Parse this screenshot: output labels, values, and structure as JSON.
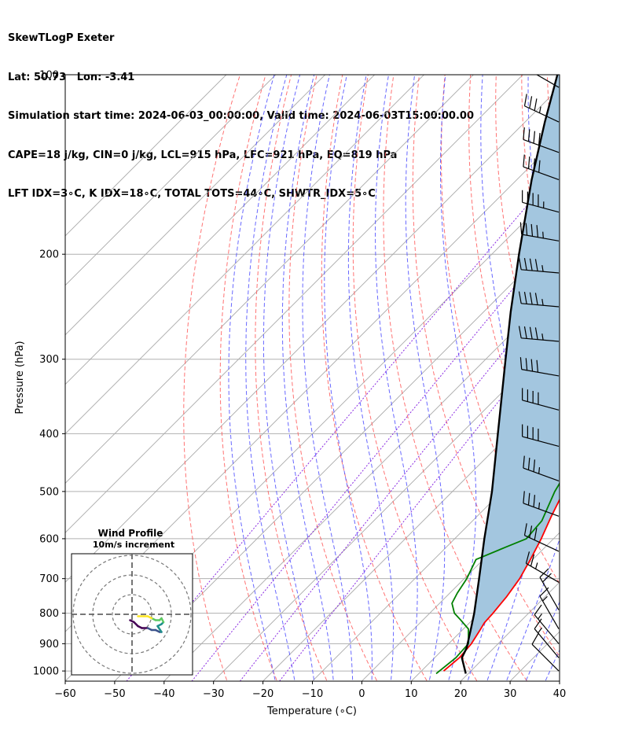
{
  "header": {
    "line1": "SkewTLogP Exeter",
    "line2": "Lat: 50.73   Lon: -3.41",
    "line3": "Simulation start time: 2024-06-03_00:00:00, Valid time: 2024-06-03T15:00:00.00",
    "line4": "CAPE=18 j/kg, CIN=0 j/kg, LCL=915 hPa, LFC=921 hPa, EQ=819 hPa",
    "line5": "LFT IDX=3∘C, K IDX=18∘C, TOTAL TOTS=44∘C, SHWTR_IDX=5∘C"
  },
  "chart_data": {
    "type": "skewt",
    "xlabel": "Temperature (∘C)",
    "ylabel": "Pressure (hPa)",
    "xlim": [
      -60,
      40
    ],
    "ylim": [
      1040,
      100
    ],
    "xticks": [
      -60,
      -50,
      -40,
      -30,
      -20,
      -10,
      0,
      10,
      20,
      30,
      40
    ],
    "xtick_labels": [
      "−60",
      "−50",
      "−40",
      "−30",
      "−20",
      "−10",
      "0",
      "10",
      "20",
      "30",
      "40"
    ],
    "yticks": [
      1000,
      900,
      800,
      700,
      600,
      500,
      400,
      300,
      200,
      100
    ],
    "ytick_labels": [
      "1000",
      "900",
      "800",
      "700",
      "600",
      "500",
      "400",
      "300",
      "200",
      "100"
    ],
    "grid": true,
    "colors": {
      "temperature": "#ff0000",
      "dewpoint": "#008000",
      "parcel": "#000000",
      "cape_fill": "#a3c6df",
      "dry_adiabat": "#ff5a5a",
      "moist_adiabat": "#4d4dff",
      "mixing_ratio": "#8a2be2",
      "isotherm": "#a9a9a9"
    },
    "temperature": [
      [
        1000,
        14.5
      ],
      [
        950,
        15.0
      ],
      [
        900,
        14.6
      ],
      [
        850,
        13.5
      ],
      [
        830,
        13.0
      ],
      [
        800,
        12.8
      ],
      [
        750,
        12.2
      ],
      [
        700,
        11.2
      ],
      [
        650,
        9.5
      ],
      [
        600,
        7.5
      ],
      [
        550,
        5.0
      ],
      [
        500,
        2.5
      ],
      [
        450,
        0.8
      ],
      [
        400,
        -2.0
      ],
      [
        350,
        -6.5
      ],
      [
        330,
        -9.0
      ],
      [
        300,
        -12.5
      ],
      [
        270,
        -17.0
      ],
      [
        250,
        -21.5
      ],
      [
        230,
        -23.5
      ],
      [
        210,
        -25.5
      ],
      [
        200,
        -26.5
      ],
      [
        190,
        -26.5
      ],
      [
        180,
        -27.0
      ],
      [
        170,
        -28.0
      ],
      [
        160,
        -28.0
      ],
      [
        150,
        -29.5
      ],
      [
        140,
        -32.0
      ],
      [
        130,
        -36.5
      ],
      [
        125,
        -38.0
      ],
      [
        120,
        -39.5
      ],
      [
        115,
        -41.0
      ],
      [
        110,
        -42.5
      ],
      [
        105,
        -44.0
      ],
      [
        100,
        -45.2
      ]
    ],
    "dewpoint": [
      [
        1010,
        13.5
      ],
      [
        950,
        14.3
      ],
      [
        900,
        14.0
      ],
      [
        850,
        11.0
      ],
      [
        820,
        7.5
      ],
      [
        800,
        5.0
      ],
      [
        770,
        2.5
      ],
      [
        740,
        1.5
      ],
      [
        700,
        0.5
      ],
      [
        650,
        -1.5
      ],
      [
        620,
        2.0
      ],
      [
        600,
        4.5
      ],
      [
        560,
        4.0
      ],
      [
        500,
        0.7
      ],
      [
        450,
        -1.5
      ],
      [
        400,
        -5.0
      ],
      [
        350,
        -9.5
      ],
      [
        330,
        -17.0
      ],
      [
        310,
        -22.0
      ],
      [
        300,
        -25.0
      ],
      [
        280,
        -25.5
      ],
      [
        260,
        -26.5
      ],
      [
        240,
        -30.0
      ],
      [
        225,
        -31.5
      ],
      [
        210,
        -33.0
      ],
      [
        200,
        -34.5
      ],
      [
        190,
        -35.5
      ],
      [
        180,
        -36.5
      ],
      [
        170,
        -38.0
      ],
      [
        160,
        -42.0
      ],
      [
        150,
        -46.0
      ],
      [
        140,
        -50.5
      ],
      [
        130,
        -52.0
      ],
      [
        120,
        -52.5
      ],
      [
        110,
        -52.5
      ],
      [
        100,
        -53.5
      ]
    ],
    "parcel": [
      [
        1010,
        19.5
      ],
      [
        950,
        15.5
      ],
      [
        915,
        14.5
      ],
      [
        850,
        11.5
      ],
      [
        800,
        9.0
      ],
      [
        700,
        3.0
      ],
      [
        600,
        -4.0
      ],
      [
        500,
        -12.0
      ],
      [
        400,
        -22.5
      ],
      [
        300,
        -36.0
      ],
      [
        250,
        -44.5
      ],
      [
        200,
        -54.5
      ],
      [
        150,
        -67.0
      ],
      [
        120,
        -76.0
      ],
      [
        100,
        -83.0
      ]
    ],
    "wind_barbs": [
      {
        "p": 105,
        "dir": 300,
        "speed_kt": 30
      },
      {
        "p": 120,
        "dir": 295,
        "speed_kt": 35
      },
      {
        "p": 135,
        "dir": 290,
        "speed_kt": 40
      },
      {
        "p": 150,
        "dir": 290,
        "speed_kt": 40
      },
      {
        "p": 170,
        "dir": 285,
        "speed_kt": 45
      },
      {
        "p": 190,
        "dir": 280,
        "speed_kt": 45
      },
      {
        "p": 215,
        "dir": 275,
        "speed_kt": 45
      },
      {
        "p": 245,
        "dir": 275,
        "speed_kt": 45
      },
      {
        "p": 280,
        "dir": 275,
        "speed_kt": 45
      },
      {
        "p": 320,
        "dir": 280,
        "speed_kt": 40
      },
      {
        "p": 365,
        "dir": 285,
        "speed_kt": 40
      },
      {
        "p": 420,
        "dir": 285,
        "speed_kt": 40
      },
      {
        "p": 480,
        "dir": 290,
        "speed_kt": 35
      },
      {
        "p": 550,
        "dir": 290,
        "speed_kt": 35
      },
      {
        "p": 630,
        "dir": 295,
        "speed_kt": 30
      },
      {
        "p": 710,
        "dir": 300,
        "speed_kt": 25
      },
      {
        "p": 790,
        "dir": 330,
        "speed_kt": 20
      },
      {
        "p": 850,
        "dir": 330,
        "speed_kt": 15
      },
      {
        "p": 900,
        "dir": 320,
        "speed_kt": 15
      },
      {
        "p": 950,
        "dir": 320,
        "speed_kt": 15
      },
      {
        "p": 1000,
        "dir": 315,
        "speed_kt": 10
      }
    ],
    "hodograph": {
      "title": "Wind Profile",
      "subtitle": "10m/s increment",
      "path_uv": [
        [
          -1,
          -3
        ],
        [
          1,
          -4
        ],
        [
          3,
          -6
        ],
        [
          5,
          -7
        ],
        [
          8,
          -7
        ],
        [
          10,
          -8
        ],
        [
          12,
          -8
        ],
        [
          14,
          -9
        ],
        [
          15,
          -9
        ],
        [
          13,
          -6
        ],
        [
          15,
          -5
        ],
        [
          16,
          -4
        ],
        [
          15,
          -2
        ],
        [
          14,
          -3
        ],
        [
          12,
          -3
        ],
        [
          10,
          -2
        ],
        [
          8,
          -1
        ],
        [
          6,
          -1
        ],
        [
          3,
          -1
        ]
      ],
      "ring_step": 10,
      "rings": 3
    }
  }
}
